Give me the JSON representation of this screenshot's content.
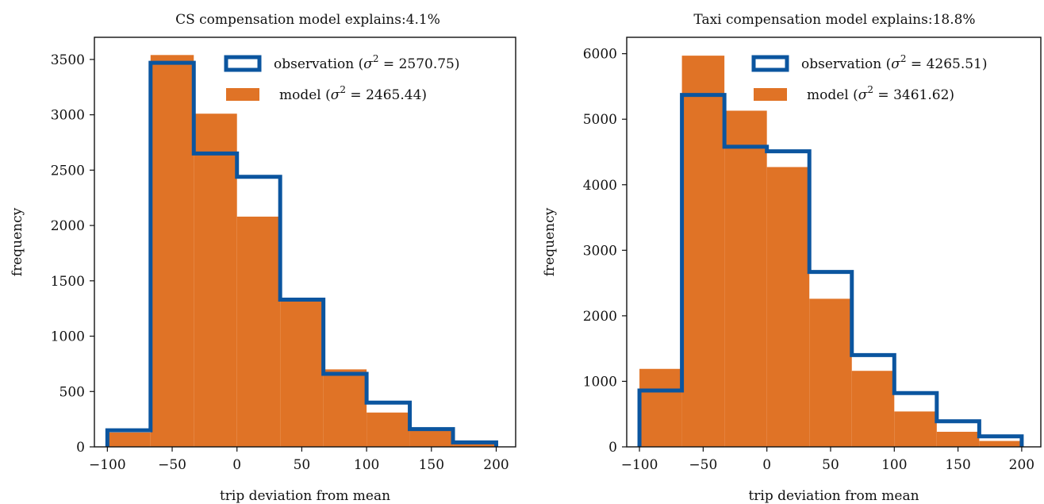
{
  "chart_data": [
    {
      "type": "bar",
      "title": "CS compensation model explains:4.1%",
      "xlabel": "trip deviation from mean",
      "ylabel": "frequency",
      "xlim": [
        -110,
        215
      ],
      "ylim": [
        0,
        3700
      ],
      "xticks": [
        -100,
        -50,
        0,
        50,
        100,
        150,
        200
      ],
      "xtick_labels": [
        "−100",
        "−50",
        "0",
        "50",
        "100",
        "150",
        "200"
      ],
      "yticks": [
        0,
        500,
        1000,
        1500,
        2000,
        2500,
        3000,
        3500
      ],
      "ytick_labels": [
        "0",
        "500",
        "1000",
        "1500",
        "2000",
        "2500",
        "3000",
        "3500"
      ],
      "bin_edges": [
        -100,
        -66.67,
        -33.33,
        0,
        33.33,
        66.67,
        100,
        133.33,
        166.67,
        200
      ],
      "series": [
        {
          "name": "observation (σ² = 2570.75)",
          "legend_main": "observation (",
          "legend_sigma": "σ",
          "legend_sup": "2",
          "legend_val": " = 2570.75)",
          "style": "step",
          "color": "#0b559f",
          "values": [
            150,
            3470,
            2650,
            2440,
            1330,
            660,
            400,
            160,
            40
          ]
        },
        {
          "name": "model (σ² = 2465.44)",
          "legend_main": "model (",
          "legend_sigma": "σ",
          "legend_sup": "2",
          "legend_val": " = 2465.44)",
          "style": "filled",
          "color": "#e07326",
          "values": [
            130,
            3540,
            3010,
            2080,
            1330,
            700,
            310,
            150,
            30
          ]
        }
      ],
      "legend_position": "top-right"
    },
    {
      "type": "bar",
      "title": "Taxi compensation model explains:18.8%",
      "xlabel": "trip deviation from mean",
      "ylabel": "frequency",
      "xlim": [
        -110,
        215
      ],
      "ylim": [
        0,
        6250
      ],
      "xticks": [
        -100,
        -50,
        0,
        50,
        100,
        150,
        200
      ],
      "xtick_labels": [
        "−100",
        "−50",
        "0",
        "50",
        "100",
        "150",
        "200"
      ],
      "yticks": [
        0,
        1000,
        2000,
        3000,
        4000,
        5000,
        6000
      ],
      "ytick_labels": [
        "0",
        "1000",
        "2000",
        "3000",
        "4000",
        "5000",
        "6000"
      ],
      "bin_edges": [
        -100,
        -66.67,
        -33.33,
        0,
        33.33,
        66.67,
        100,
        133.33,
        166.67,
        200
      ],
      "series": [
        {
          "name": "observation (σ² = 4265.51)",
          "legend_main": "observation (",
          "legend_sigma": "σ",
          "legend_sup": "2",
          "legend_val": " = 4265.51)",
          "style": "step",
          "color": "#0b559f",
          "values": [
            860,
            5370,
            4580,
            4510,
            2670,
            1400,
            820,
            390,
            160
          ]
        },
        {
          "name": "model (σ² = 3461.62)",
          "legend_main": "model (",
          "legend_sigma": "σ",
          "legend_sup": "2",
          "legend_val": " = 3461.62)",
          "style": "filled",
          "color": "#e07326",
          "values": [
            1190,
            5970,
            5130,
            4270,
            2260,
            1160,
            540,
            230,
            90
          ]
        }
      ],
      "legend_position": "top-right"
    }
  ]
}
